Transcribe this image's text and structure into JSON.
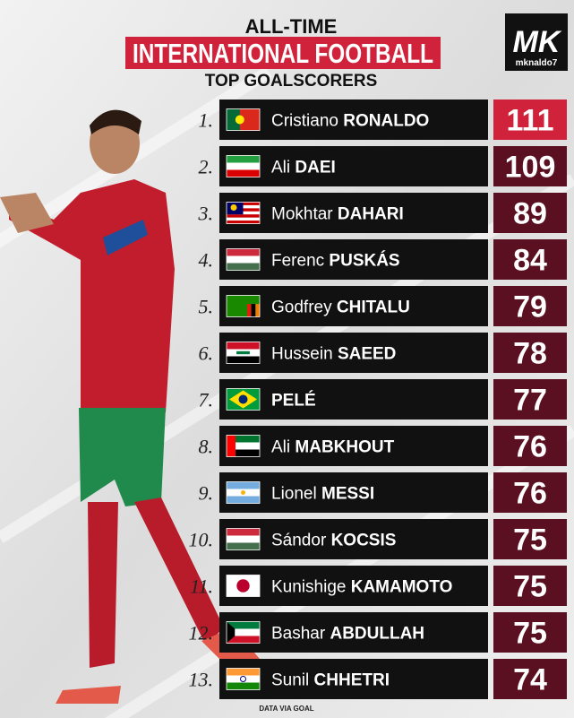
{
  "header": {
    "line1": "ALL-TIME",
    "banner": "INTERNATIONAL FOOTBALL",
    "line3": "TOP GOALSCORERS",
    "logo": "MK",
    "handle": "mknaldo7"
  },
  "rows": [
    {
      "rank": "1.",
      "first": "Cristiano",
      "last": "RONALDO",
      "goals": 111
    },
    {
      "rank": "2.",
      "first": "Ali",
      "last": "DAEI",
      "goals": 109
    },
    {
      "rank": "3.",
      "first": "Mokhtar",
      "last": "DAHARI",
      "goals": 89
    },
    {
      "rank": "4.",
      "first": "Ferenc",
      "last": "PUSKÁS",
      "goals": 84
    },
    {
      "rank": "5.",
      "first": "Godfrey",
      "last": "CHITALU",
      "goals": 79
    },
    {
      "rank": "6.",
      "first": "Hussein",
      "last": "SAEED",
      "goals": 78
    },
    {
      "rank": "7.",
      "first": "",
      "last": "PELÉ",
      "goals": 77
    },
    {
      "rank": "8.",
      "first": "Ali",
      "last": "MABKHOUT",
      "goals": 76
    },
    {
      "rank": "9.",
      "first": "Lionel",
      "last": "MESSI",
      "goals": 76
    },
    {
      "rank": "10.",
      "first": "Sándor",
      "last": "KOCSIS",
      "goals": 75
    },
    {
      "rank": "11.",
      "first": "Kunishige",
      "last": "KAMAMOTO",
      "goals": 75
    },
    {
      "rank": "12.",
      "first": "Bashar",
      "last": "ABDULLAH",
      "goals": 75
    },
    {
      "rank": "13.",
      "first": "Sunil",
      "last": "CHHETRI",
      "goals": 74
    }
  ],
  "footer": "DATA VIA GOAL"
}
